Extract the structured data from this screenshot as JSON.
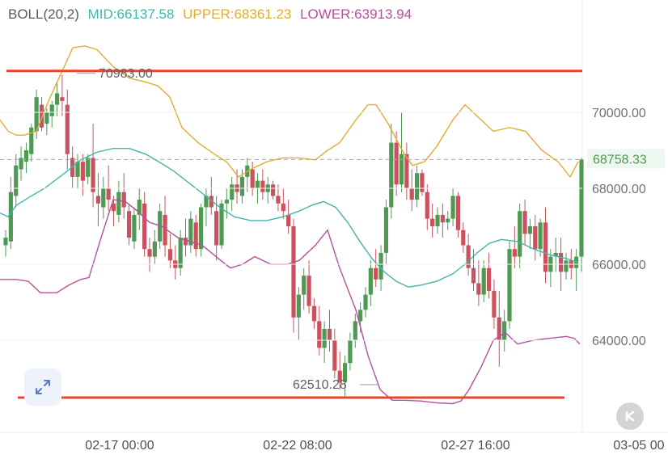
{
  "indicator": {
    "label": "BOLL(20,2)",
    "mid": "MID:66137.58",
    "upper": "UPPER:68361.23",
    "lower": "LOWER:63913.94"
  },
  "colors": {
    "mid": "#3fb8a8",
    "upper": "#e0ae2f",
    "lower": "#b5509a",
    "up_candle": "#4f9a53",
    "down_candle": "#c9525e",
    "hline": "#e8452c"
  },
  "icons": {
    "expand": "expand-arrows-icon",
    "collapse": "k-collapse-icon"
  },
  "chart_data": {
    "type": "candlestick",
    "y_ticks": [
      "70000.00",
      "68000.00",
      "66000.00",
      "64000.00"
    ],
    "x_ticks": [
      "02-17 00:00",
      "02-22 08:00",
      "02-27 16:00",
      "03-05 00"
    ],
    "current_price": "68758.33",
    "annotations": {
      "high": "70983.00",
      "low": "62510.28"
    },
    "ylim": [
      62250,
      71900
    ],
    "candles": [
      [
        66500,
        66900,
        66200,
        66700
      ],
      [
        66600,
        68300,
        66400,
        67900
      ],
      [
        67800,
        68900,
        67500,
        68600
      ],
      [
        68500,
        69100,
        68200,
        68800
      ],
      [
        68700,
        69200,
        68400,
        69000
      ],
      [
        68900,
        69700,
        68700,
        69600
      ],
      [
        69500,
        70600,
        69300,
        70400
      ],
      [
        70200,
        70400,
        69500,
        69600
      ],
      [
        69700,
        70100,
        69400,
        70000
      ],
      [
        69900,
        70300,
        69600,
        70200
      ],
      [
        70200,
        70800,
        69900,
        70500
      ],
      [
        70400,
        70983,
        69900,
        70300
      ],
      [
        70200,
        70600,
        68500,
        68900
      ],
      [
        68800,
        69100,
        68000,
        68300
      ],
      [
        68300,
        68900,
        68000,
        68700
      ],
      [
        68700,
        68900,
        67800,
        68200
      ],
      [
        68300,
        68900,
        68100,
        68800
      ],
      [
        68800,
        69700,
        67500,
        67900
      ],
      [
        67800,
        68400,
        67000,
        67600
      ],
      [
        67500,
        68300,
        67200,
        68000
      ],
      [
        68000,
        68600,
        67400,
        67700
      ],
      [
        67600,
        67800,
        67000,
        67400
      ],
      [
        67300,
        68200,
        67100,
        67900
      ],
      [
        67900,
        68400,
        67200,
        67500
      ],
      [
        67400,
        67600,
        66500,
        66700
      ],
      [
        66600,
        67500,
        66400,
        67300
      ],
      [
        67300,
        68000,
        66900,
        67700
      ],
      [
        67600,
        67900,
        66200,
        66400
      ],
      [
        66400,
        66700,
        65800,
        66200
      ],
      [
        66200,
        66900,
        66000,
        66600
      ],
      [
        66600,
        67600,
        66400,
        67400
      ],
      [
        67300,
        67800,
        66200,
        66500
      ],
      [
        66400,
        66800,
        65900,
        66100
      ],
      [
        66100,
        66500,
        65600,
        65900
      ],
      [
        65900,
        66900,
        65700,
        66700
      ],
      [
        66700,
        67200,
        66200,
        66500
      ],
      [
        66500,
        67400,
        66300,
        67200
      ],
      [
        67100,
        67300,
        66200,
        66400
      ],
      [
        66400,
        67600,
        66200,
        67500
      ],
      [
        67500,
        68000,
        67000,
        67800
      ],
      [
        67800,
        68300,
        67300,
        67500
      ],
      [
        67400,
        67800,
        66100,
        66500
      ],
      [
        66500,
        67700,
        66400,
        67600
      ],
      [
        67600,
        68000,
        67200,
        67700
      ],
      [
        67700,
        68300,
        67400,
        68100
      ],
      [
        68100,
        68500,
        67600,
        67900
      ],
      [
        67800,
        68500,
        67600,
        68300
      ],
      [
        68300,
        68800,
        67900,
        68600
      ],
      [
        68500,
        68700,
        67800,
        68000
      ],
      [
        68000,
        68400,
        67600,
        68200
      ],
      [
        68200,
        68500,
        67700,
        67900
      ],
      [
        67900,
        68300,
        67600,
        68100
      ],
      [
        68100,
        68200,
        67700,
        67800
      ],
      [
        67800,
        68100,
        67400,
        67600
      ],
      [
        67600,
        68000,
        67200,
        67400
      ],
      [
        67300,
        67700,
        66800,
        67000
      ],
      [
        67000,
        67200,
        64200,
        64600
      ],
      [
        64600,
        65400,
        64000,
        65200
      ],
      [
        65200,
        65900,
        64800,
        65700
      ],
      [
        65700,
        66100,
        64700,
        64900
      ],
      [
        64900,
        65100,
        64300,
        64500
      ],
      [
        64500,
        64900,
        63600,
        63800
      ],
      [
        63800,
        64500,
        63400,
        64300
      ],
      [
        64300,
        64800,
        63700,
        64000
      ],
      [
        64000,
        64300,
        63000,
        63200
      ],
      [
        63200,
        63700,
        62700,
        62900
      ],
      [
        62900,
        63600,
        62510,
        63400
      ],
      [
        63400,
        64200,
        63200,
        64000
      ],
      [
        64000,
        64700,
        63800,
        64500
      ],
      [
        64500,
        65000,
        64200,
        64800
      ],
      [
        64800,
        65400,
        64600,
        65200
      ],
      [
        65200,
        66100,
        64900,
        65900
      ],
      [
        65900,
        66400,
        65400,
        65600
      ],
      [
        65600,
        66500,
        65300,
        66300
      ],
      [
        66300,
        67700,
        66000,
        67500
      ],
      [
        67500,
        69700,
        67200,
        69200
      ],
      [
        69200,
        69500,
        67800,
        68100
      ],
      [
        68100,
        70000,
        67900,
        68900
      ],
      [
        68900,
        69200,
        67700,
        68000
      ],
      [
        68000,
        68500,
        67400,
        67700
      ],
      [
        67700,
        68600,
        67500,
        68400
      ],
      [
        68400,
        68500,
        67800,
        67900
      ],
      [
        67900,
        68100,
        66900,
        67200
      ],
      [
        67200,
        67600,
        66700,
        67000
      ],
      [
        67000,
        67500,
        66800,
        67300
      ],
      [
        67300,
        67600,
        66700,
        67100
      ],
      [
        67100,
        67400,
        66900,
        67200
      ],
      [
        67200,
        68000,
        67000,
        67800
      ],
      [
        67800,
        67900,
        66700,
        66900
      ],
      [
        66900,
        67100,
        66300,
        66500
      ],
      [
        66500,
        66800,
        65700,
        65900
      ],
      [
        65900,
        66400,
        65300,
        65500
      ],
      [
        65500,
        66100,
        64900,
        65200
      ],
      [
        65200,
        66100,
        65000,
        65900
      ],
      [
        65900,
        66300,
        65100,
        65300
      ],
      [
        65300,
        65600,
        64300,
        64600
      ],
      [
        64600,
        65300,
        63300,
        64000
      ],
      [
        64000,
        64800,
        63700,
        64500
      ],
      [
        64500,
        66600,
        64300,
        66400
      ],
      [
        66400,
        67000,
        65900,
        66200
      ],
      [
        66200,
        67600,
        65900,
        67400
      ],
      [
        67400,
        67700,
        66500,
        66800
      ],
      [
        66800,
        67200,
        66400,
        67000
      ],
      [
        67000,
        67300,
        66100,
        66400
      ],
      [
        66400,
        67200,
        66200,
        67100
      ],
      [
        67100,
        67500,
        65500,
        65800
      ],
      [
        65800,
        66400,
        65400,
        66200
      ],
      [
        66200,
        66700,
        65800,
        66300
      ],
      [
        66300,
        66700,
        65300,
        65800
      ],
      [
        65800,
        66300,
        65600,
        66100
      ],
      [
        66100,
        66400,
        65600,
        65900
      ],
      [
        65900,
        66400,
        65300,
        66200
      ],
      [
        66200,
        68800,
        65800,
        68758.33
      ]
    ],
    "mid": [
      [
        0,
        67350
      ],
      [
        10,
        67250
      ],
      [
        20,
        67550
      ],
      [
        35,
        67750
      ],
      [
        55,
        68000
      ],
      [
        80,
        68400
      ],
      [
        100,
        68750
      ],
      [
        120,
        68950
      ],
      [
        140,
        69050
      ],
      [
        160,
        69050
      ],
      [
        180,
        68900
      ],
      [
        200,
        68650
      ],
      [
        215,
        68450
      ],
      [
        230,
        68200
      ],
      [
        245,
        67950
      ],
      [
        260,
        67700
      ],
      [
        275,
        67450
      ],
      [
        290,
        67250
      ],
      [
        310,
        67150
      ],
      [
        330,
        67150
      ],
      [
        350,
        67250
      ],
      [
        370,
        67400
      ],
      [
        385,
        67550
      ],
      [
        400,
        67650
      ],
      [
        415,
        67500
      ],
      [
        430,
        67100
      ],
      [
        445,
        66600
      ],
      [
        460,
        66150
      ],
      [
        475,
        65800
      ],
      [
        490,
        65550
      ],
      [
        505,
        65400
      ],
      [
        520,
        65450
      ],
      [
        540,
        65550
      ],
      [
        560,
        65750
      ],
      [
        575,
        66000
      ],
      [
        590,
        66300
      ],
      [
        605,
        66550
      ],
      [
        620,
        66650
      ],
      [
        640,
        66600
      ],
      [
        660,
        66400
      ],
      [
        680,
        66250
      ],
      [
        700,
        66150
      ],
      [
        715,
        66050
      ]
    ],
    "upper": [
      [
        0,
        69800
      ],
      [
        10,
        69500
      ],
      [
        20,
        69400
      ],
      [
        30,
        69400
      ],
      [
        45,
        69500
      ],
      [
        60,
        70300
      ],
      [
        75,
        71000
      ],
      [
        90,
        71700
      ],
      [
        105,
        71750
      ],
      [
        120,
        71650
      ],
      [
        140,
        71200
      ],
      [
        160,
        70900
      ],
      [
        180,
        70800
      ],
      [
        195,
        70700
      ],
      [
        210,
        70400
      ],
      [
        225,
        69600
      ],
      [
        245,
        69200
      ],
      [
        265,
        68900
      ],
      [
        280,
        68700
      ],
      [
        295,
        68300
      ],
      [
        310,
        68500
      ],
      [
        330,
        68700
      ],
      [
        350,
        68800
      ],
      [
        370,
        68800
      ],
      [
        390,
        68750
      ],
      [
        405,
        69000
      ],
      [
        420,
        69200
      ],
      [
        440,
        69800
      ],
      [
        455,
        70200
      ],
      [
        465,
        70200
      ],
      [
        480,
        69700
      ],
      [
        500,
        68900
      ],
      [
        510,
        68600
      ],
      [
        525,
        68700
      ],
      [
        540,
        69100
      ],
      [
        560,
        69800
      ],
      [
        575,
        70200
      ],
      [
        590,
        69900
      ],
      [
        610,
        69500
      ],
      [
        630,
        69600
      ],
      [
        650,
        69500
      ],
      [
        670,
        69000
      ],
      [
        690,
        68700
      ],
      [
        705,
        68300
      ],
      [
        715,
        68700
      ]
    ],
    "lower": [
      [
        0,
        65600
      ],
      [
        20,
        65600
      ],
      [
        35,
        65550
      ],
      [
        50,
        65250
      ],
      [
        70,
        65250
      ],
      [
        85,
        65450
      ],
      [
        100,
        65600
      ],
      [
        110,
        65650
      ],
      [
        125,
        66700
      ],
      [
        140,
        67700
      ],
      [
        155,
        67650
      ],
      [
        170,
        67400
      ],
      [
        185,
        67100
      ],
      [
        200,
        67000
      ],
      [
        220,
        66700
      ],
      [
        235,
        66600
      ],
      [
        250,
        66500
      ],
      [
        270,
        66150
      ],
      [
        285,
        65900
      ],
      [
        300,
        66000
      ],
      [
        315,
        66200
      ],
      [
        335,
        66000
      ],
      [
        355,
        66000
      ],
      [
        370,
        66100
      ],
      [
        390,
        66500
      ],
      [
        405,
        66900
      ],
      [
        420,
        65900
      ],
      [
        440,
        64800
      ],
      [
        455,
        63600
      ],
      [
        470,
        62700
      ],
      [
        485,
        62420
      ],
      [
        500,
        62420
      ],
      [
        520,
        62400
      ],
      [
        540,
        62350
      ],
      [
        560,
        62330
      ],
      [
        570,
        62400
      ],
      [
        580,
        62700
      ],
      [
        595,
        63300
      ],
      [
        610,
        64000
      ],
      [
        625,
        64200
      ],
      [
        640,
        63900
      ],
      [
        660,
        64000
      ],
      [
        680,
        64050
      ],
      [
        700,
        64100
      ],
      [
        710,
        64050
      ],
      [
        717,
        63900
      ]
    ]
  }
}
